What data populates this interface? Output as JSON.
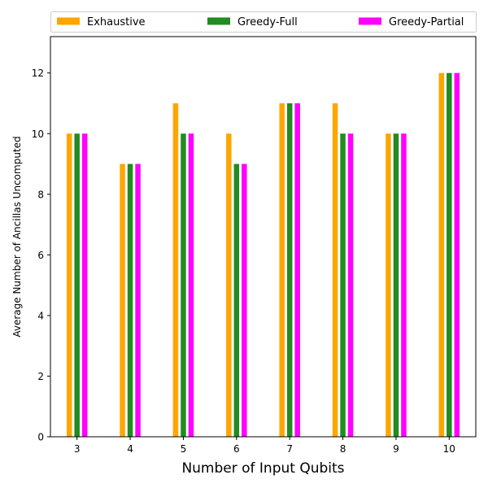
{
  "chart_data": {
    "type": "bar",
    "title": "",
    "xlabel": "Number of Input Qubits",
    "ylabel": "Average Number of Ancillas Uncomputed",
    "categories": [
      "3",
      "4",
      "5",
      "6",
      "7",
      "8",
      "9",
      "10"
    ],
    "series": [
      {
        "name": "Exhaustive",
        "color": "#ffa500",
        "values": [
          10,
          9,
          11,
          10,
          11,
          11,
          10,
          12
        ]
      },
      {
        "name": "Greedy-Full",
        "color": "#228b22",
        "values": [
          10,
          9,
          10,
          9,
          11,
          10,
          10,
          12
        ]
      },
      {
        "name": "Greedy-Partial",
        "color": "#ff00ff",
        "values": [
          10,
          9,
          10,
          9,
          11,
          10,
          10,
          12
        ]
      }
    ],
    "ylim": [
      0,
      13.2
    ],
    "yticks": [
      0,
      2,
      4,
      6,
      8,
      10,
      12
    ],
    "grid": false,
    "legend_position": "top, outside plot, 3 columns"
  }
}
